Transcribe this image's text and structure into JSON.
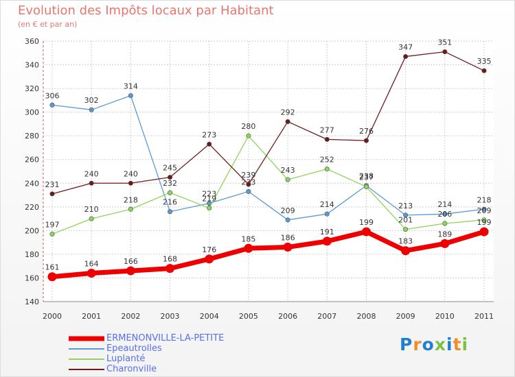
{
  "chart_data": {
    "type": "line",
    "title": "Evolution des Impôts locaux par Habitant",
    "subtitle": "(en € et par an)",
    "xlabel": "",
    "ylabel": "",
    "categories": [
      "2000",
      "2001",
      "2002",
      "2003",
      "2004",
      "2005",
      "2006",
      "2007",
      "2008",
      "2009",
      "2010",
      "2011"
    ],
    "ylim": [
      140,
      360
    ],
    "yticks": [
      "140",
      "160",
      "180",
      "200",
      "220",
      "240",
      "260",
      "280",
      "300",
      "320",
      "340",
      "360"
    ],
    "grid": true,
    "legend_position": "bottom-left",
    "series": [
      {
        "name": "ERMENONVILLE-LA-PETITE",
        "color": "#ee0000",
        "values": [
          161,
          164,
          166,
          168,
          176,
          185,
          186,
          191,
          199,
          183,
          189,
          199
        ]
      },
      {
        "name": "Epeautrolles",
        "color": "#5a9ad5",
        "values": [
          306,
          302,
          314,
          216,
          223,
          233,
          209,
          214,
          238,
          213,
          214,
          218
        ]
      },
      {
        "name": "Luplanté",
        "color": "#8ed65a",
        "values": [
          197,
          210,
          218,
          232,
          219,
          280,
          243,
          252,
          237,
          201,
          206,
          209
        ]
      },
      {
        "name": "Charonville",
        "color": "#6e1a1a",
        "values": [
          231,
          240,
          240,
          245,
          273,
          239,
          292,
          277,
          276,
          347,
          351,
          335
        ]
      }
    ]
  },
  "logo": {
    "text": "Proxiti"
  }
}
